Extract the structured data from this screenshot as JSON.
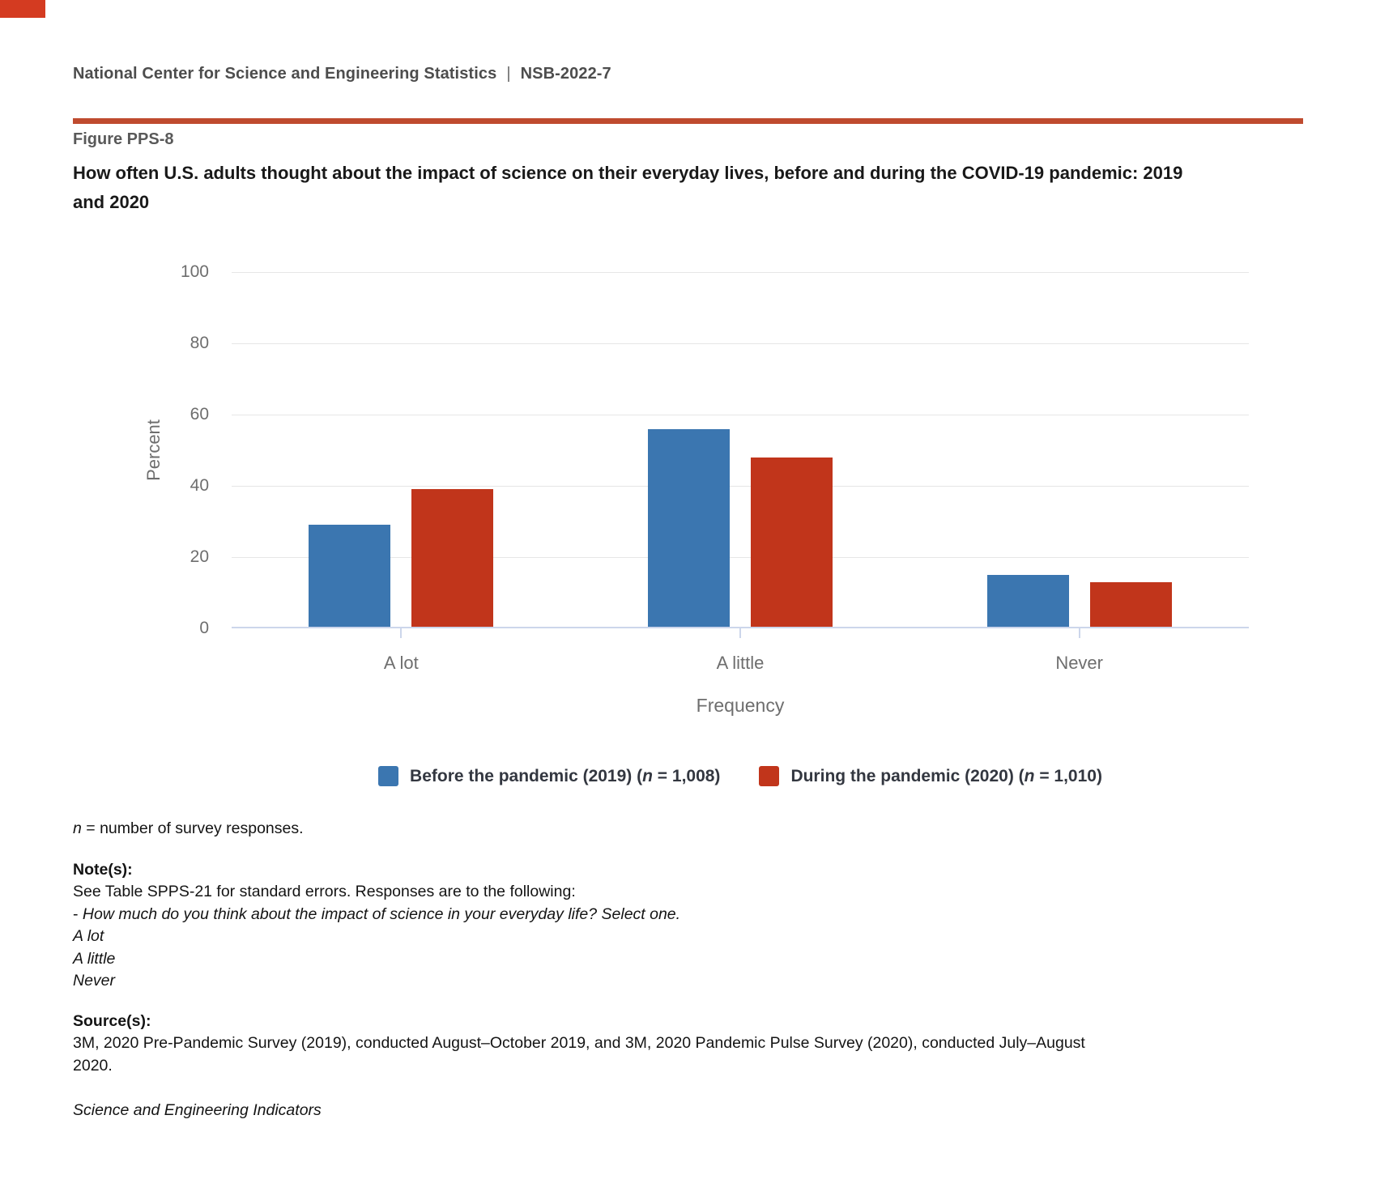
{
  "page": {
    "corner_mark_color": "#d43b21",
    "rule_color": "#bf4b2f"
  },
  "header": {
    "org_name": "National Center for Science and Engineering Statistics",
    "separator": "|",
    "report_number": "NSB-2022-7"
  },
  "figure": {
    "label": "Figure PPS-8",
    "title_line1": "How often U.S. adults thought about the impact of science on their everyday lives, before and during the COVID-19 pandemic: 2019",
    "title_line2": "and 2020"
  },
  "chart_data": {
    "type": "bar",
    "categories": [
      "A lot",
      "A little",
      "Never"
    ],
    "series": [
      {
        "name": "Before the pandemic (2019) (n = 1,008)",
        "legend_pre": "Before the pandemic (2019) (",
        "legend_n": "n",
        "legend_post": " = 1,008)",
        "color": "#3b76b0",
        "values": [
          29,
          56,
          15
        ]
      },
      {
        "name": "During the pandemic (2020) (n = 1,010)",
        "legend_pre": "During the pandemic (2020) (",
        "legend_n": "n",
        "legend_post": " = 1,010)",
        "color": "#c1351b",
        "values": [
          39,
          48,
          13
        ]
      }
    ],
    "title": "",
    "xlabel": "Frequency",
    "ylabel": "Percent",
    "ylim": [
      0,
      100
    ],
    "yticks": [
      0,
      20,
      40,
      60,
      80,
      100
    ],
    "grid": true,
    "legend_position": "bottom-center"
  },
  "footnotes": {
    "n_def_italic": "n",
    "n_def_rest": " = number of survey responses.",
    "notes_heading": "Note(s):",
    "notes_line1": "See Table SPPS-21 for standard errors. Responses are to the following:",
    "question_prefix": "- ",
    "question_italic": "How much do you think about the impact of science in your everyday life? Select one.",
    "options": [
      "A lot",
      "A little",
      "Never"
    ],
    "sources_heading": "Source(s):",
    "source_text": "3M, 2020 Pre-Pandemic Survey (2019), conducted August–October 2019, and 3M, 2020 Pandemic Pulse Survey (2020), conducted July–August 2020.",
    "attribution": "Science and Engineering Indicators"
  }
}
